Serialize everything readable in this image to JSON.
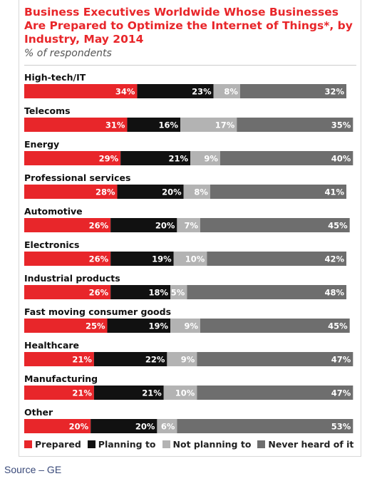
{
  "chart_data": {
    "type": "bar",
    "stacked": true,
    "orientation": "horizontal",
    "title": "Business Executives Worldwide Whose Businesses Are Prepared to Optimize the Internet of Things*, by Industry, May 2014",
    "subtitle": "% of respondents",
    "categories": [
      "High-tech/IT",
      "Telecoms",
      "Energy",
      "Professional services",
      "Automotive",
      "Electronics",
      "Industrial products",
      "Fast moving consumer goods",
      "Healthcare",
      "Manufacturing",
      "Other"
    ],
    "series": [
      {
        "name": "Prepared",
        "color": "#e8262a",
        "values": [
          34,
          31,
          29,
          28,
          26,
          26,
          26,
          25,
          21,
          21,
          20
        ]
      },
      {
        "name": "Planning to",
        "color": "#111111",
        "values": [
          23,
          16,
          21,
          20,
          20,
          19,
          18,
          19,
          22,
          21,
          20
        ]
      },
      {
        "name": "Not planning to",
        "color": "#b3b3b3",
        "values": [
          8,
          17,
          9,
          8,
          7,
          10,
          5,
          9,
          9,
          10,
          6
        ]
      },
      {
        "name": "Never heard of it",
        "color": "#6e6e6e",
        "values": [
          32,
          35,
          40,
          41,
          45,
          42,
          48,
          45,
          47,
          47,
          53
        ]
      }
    ],
    "value_suffix": "%",
    "xlim": [
      0,
      100
    ],
    "legend_position": "bottom"
  },
  "source": "Source – GE"
}
